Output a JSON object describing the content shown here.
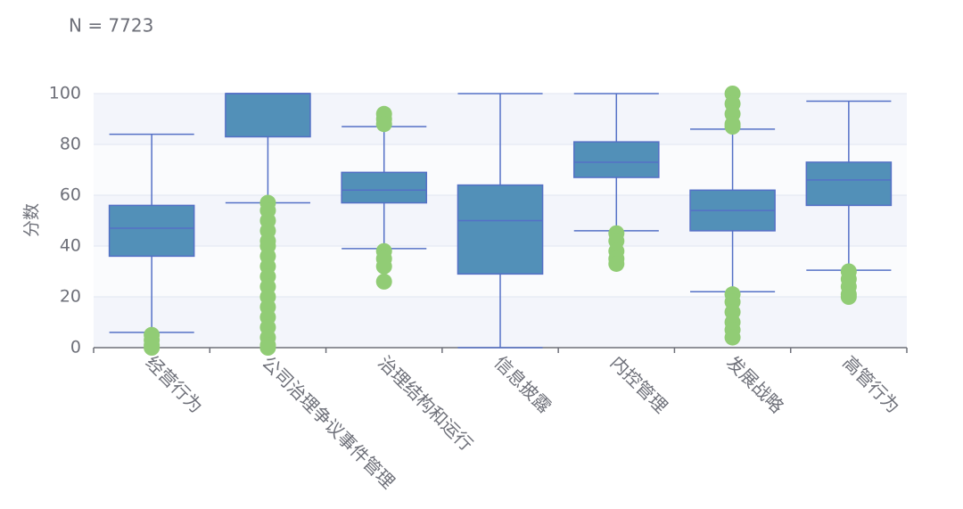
{
  "chart_data": {
    "type": "boxplot",
    "title": "N = 7723",
    "y_label": "分数",
    "categories": [
      "经营行为",
      "公司治理争议事件管理",
      "治理结构和运行",
      "信息披露",
      "内控管理",
      "发展战略",
      "高管行为"
    ],
    "values": [
      [
        6,
        36,
        47,
        56,
        84
      ],
      [
        57,
        83,
        100,
        100,
        100
      ],
      [
        39,
        57,
        62,
        69,
        87
      ],
      [
        0,
        29,
        50,
        64,
        100
      ],
      [
        46,
        67,
        73,
        81,
        100
      ],
      [
        22,
        46,
        54,
        62,
        86
      ],
      [
        30.5,
        56,
        66,
        73,
        97
      ]
    ],
    "outliers": [
      [
        5,
        3,
        1,
        0
      ],
      [
        57,
        54,
        50,
        46,
        42,
        40,
        36,
        32,
        28,
        24,
        20,
        16,
        12,
        8,
        4,
        1,
        0
      ],
      [
        92,
        90,
        88,
        38,
        35,
        32,
        26
      ],
      [],
      [
        45,
        42,
        38,
        35,
        33
      ],
      [
        100,
        96,
        92,
        88,
        87,
        21,
        18,
        14,
        10,
        7,
        4
      ],
      [
        30,
        27,
        24,
        21,
        20
      ]
    ],
    "box_color": "#5290b8",
    "line_color": "#5470c6",
    "outlier_color": "#91cc75",
    "ylim": [
      0,
      100
    ],
    "yticks": [
      0,
      20,
      40,
      60,
      80,
      100
    ],
    "grid": true,
    "split_area": true
  }
}
